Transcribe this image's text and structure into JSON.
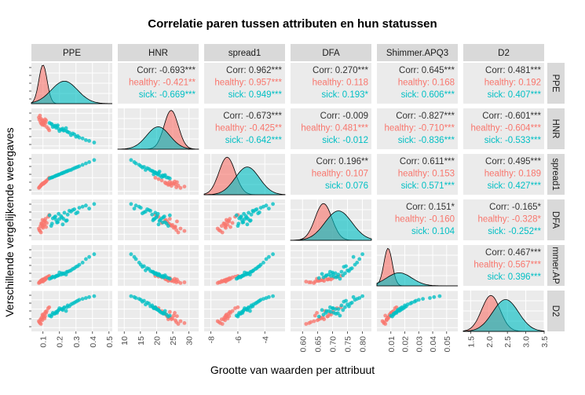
{
  "chart_data": {
    "type": "scatter",
    "title": "Correlatie paren tussen attributen en hun statussen",
    "xlabel": "Grootte van waarden per attribuut",
    "ylabel": "Verschillende vergelijkende weergaves",
    "variables": [
      "PPE",
      "HNR",
      "spread1",
      "DFA",
      "Shimmer.APQ3",
      "D2"
    ],
    "row_strip_labels": [
      "PPE",
      "HNR",
      "spread1",
      "DFA",
      "mmer.AP",
      "D2"
    ],
    "groups": [
      {
        "name": "healthy",
        "color": "#F8766D"
      },
      {
        "name": "sick",
        "color": "#00BFC4"
      }
    ],
    "x_ticks": [
      [
        "0.1",
        "0.2",
        "0.3",
        "0.4",
        "0.5"
      ],
      [
        "10",
        "15",
        "20",
        "25",
        "30"
      ],
      [
        "-8",
        "-6",
        "-4"
      ],
      [
        "0.60",
        "0.65",
        "0.70",
        "0.75",
        "0.80"
      ],
      [
        "0.01",
        "0.02",
        "0.03",
        "0.04",
        "0.05"
      ],
      [
        "1.5",
        "2.0",
        "2.5",
        "3.0",
        "3.5"
      ]
    ],
    "x_tick_values": [
      [
        0.1,
        0.2,
        0.3,
        0.4,
        0.5
      ],
      [
        10,
        15,
        20,
        25,
        30
      ],
      [
        -8,
        -6,
        -4
      ],
      [
        0.6,
        0.65,
        0.7,
        0.75,
        0.8
      ],
      [
        0.01,
        0.02,
        0.03,
        0.04,
        0.05
      ],
      [
        1.5,
        2.0,
        2.5,
        3.0,
        3.5
      ]
    ],
    "ranges": [
      [
        0.03,
        0.52
      ],
      [
        8,
        33
      ],
      [
        -8.5,
        -2.5
      ],
      [
        0.56,
        0.83
      ],
      [
        0.0,
        0.058
      ],
      [
        1.3,
        3.5
      ]
    ],
    "correlations": [
      {
        "row": 0,
        "col": 1,
        "corr": "Corr: -0.693***",
        "healthy": "healthy: -0.421**",
        "sick": "sick: -0.669***"
      },
      {
        "row": 0,
        "col": 2,
        "corr": "Corr: 0.962***",
        "healthy": "healthy: 0.957***",
        "sick": "sick: 0.949***"
      },
      {
        "row": 0,
        "col": 3,
        "corr": "Corr: 0.270***",
        "healthy": "healthy: 0.118",
        "sick": "sick: 0.193*"
      },
      {
        "row": 0,
        "col": 4,
        "corr": "Corr: 0.645***",
        "healthy": "healthy: 0.168",
        "sick": "sick: 0.606***"
      },
      {
        "row": 0,
        "col": 5,
        "corr": "Corr: 0.481***",
        "healthy": "healthy: 0.192",
        "sick": "sick: 0.407***"
      },
      {
        "row": 1,
        "col": 2,
        "corr": "Corr: -0.673***",
        "healthy": "healthy: -0.425**",
        "sick": "sick: -0.642***"
      },
      {
        "row": 1,
        "col": 3,
        "corr": "Corr: -0.009",
        "healthy": "healthy: 0.481***",
        "sick": "sick: -0.012"
      },
      {
        "row": 1,
        "col": 4,
        "corr": "Corr: -0.827***",
        "healthy": "healthy: -0.710***",
        "sick": "sick: -0.836***"
      },
      {
        "row": 1,
        "col": 5,
        "corr": "Corr: -0.601***",
        "healthy": "healthy: -0.604***",
        "sick": "sick: -0.533***"
      },
      {
        "row": 2,
        "col": 3,
        "corr": "Corr: 0.196**",
        "healthy": "healthy: 0.107",
        "sick": "sick: 0.076"
      },
      {
        "row": 2,
        "col": 4,
        "corr": "Corr: 0.611***",
        "healthy": "healthy: 0.153",
        "sick": "sick: 0.571***"
      },
      {
        "row": 2,
        "col": 5,
        "corr": "Corr: 0.495***",
        "healthy": "healthy: 0.189",
        "sick": "sick: 0.427***"
      },
      {
        "row": 3,
        "col": 4,
        "corr": "Corr: 0.151*",
        "healthy": "healthy: -0.160",
        "sick": "sick: 0.104"
      },
      {
        "row": 3,
        "col": 5,
        "corr": "Corr: -0.165*",
        "healthy": "healthy: -0.328*",
        "sick": "sick: -0.252**"
      },
      {
        "row": 4,
        "col": 5,
        "corr": "Corr: 0.467***",
        "healthy": "healthy: 0.567***",
        "sick": "sick: 0.396***"
      }
    ],
    "densities": [
      {
        "healthy": {
          "mean": 0.1,
          "sd": 0.025,
          "peak": 0.95
        },
        "sick": {
          "mean": 0.23,
          "sd": 0.08,
          "peak": 0.55
        }
      },
      {
        "healthy": {
          "mean": 24.5,
          "sd": 2.2,
          "peak": 0.95
        },
        "sick": {
          "mean": 20.5,
          "sd": 3.6,
          "peak": 0.55
        }
      },
      {
        "healthy": {
          "mean": -6.8,
          "sd": 0.6,
          "peak": 0.92
        },
        "sick": {
          "mean": -5.3,
          "sd": 0.9,
          "peak": 0.68
        }
      },
      {
        "healthy": {
          "mean": 0.67,
          "sd": 0.028,
          "peak": 0.9
        },
        "sick": {
          "mean": 0.72,
          "sd": 0.045,
          "peak": 0.72
        }
      },
      {
        "healthy": {
          "mean": 0.008,
          "sd": 0.003,
          "peak": 0.92
        },
        "sick": {
          "mean": 0.016,
          "sd": 0.009,
          "peak": 0.32
        }
      },
      {
        "healthy": {
          "mean": 2.05,
          "sd": 0.25,
          "peak": 0.88
        },
        "sick": {
          "mean": 2.45,
          "sd": 0.35,
          "peak": 0.78
        }
      }
    ],
    "scatter_points": [
      {
        "group": "healthy",
        "values": [
          0.085,
          24.6,
          -7.2,
          0.655,
          0.007,
          1.95
        ]
      },
      {
        "group": "healthy",
        "values": [
          0.092,
          23.9,
          -7.0,
          0.668,
          0.008,
          2.05
        ]
      },
      {
        "group": "healthy",
        "values": [
          0.1,
          25.3,
          -6.9,
          0.642,
          0.006,
          2.15
        ]
      },
      {
        "group": "healthy",
        "values": [
          0.108,
          22.6,
          -6.7,
          0.69,
          0.01,
          2.25
        ]
      },
      {
        "group": "healthy",
        "values": [
          0.078,
          26.1,
          -7.4,
          0.628,
          0.005,
          1.8
        ]
      },
      {
        "group": "healthy",
        "values": [
          0.115,
          24.1,
          -6.6,
          0.702,
          0.011,
          2.35
        ]
      },
      {
        "group": "healthy",
        "values": [
          0.123,
          21.6,
          -6.4,
          0.675,
          0.012,
          2.4
        ]
      },
      {
        "group": "healthy",
        "values": [
          0.096,
          25.8,
          -6.95,
          0.65,
          0.007,
          1.9
        ]
      },
      {
        "group": "healthy",
        "values": [
          0.104,
          23.3,
          -6.8,
          0.683,
          0.009,
          2.1
        ]
      },
      {
        "group": "healthy",
        "values": [
          0.088,
          26.7,
          -7.15,
          0.612,
          0.006,
          1.7
        ]
      },
      {
        "group": "healthy",
        "values": [
          0.132,
          20.6,
          -6.2,
          0.715,
          0.013,
          2.55
        ]
      },
      {
        "group": "healthy",
        "values": [
          0.075,
          27.4,
          -7.5,
          0.638,
          0.004,
          1.85
        ]
      },
      {
        "group": "healthy",
        "values": [
          0.11,
          24.9,
          -6.75,
          0.662,
          0.008,
          2.0
        ]
      },
      {
        "group": "healthy",
        "values": [
          0.097,
          22.9,
          -6.85,
          0.695,
          0.009,
          2.2
        ]
      },
      {
        "group": "healthy",
        "values": [
          0.119,
          25.6,
          -6.55,
          0.648,
          0.01,
          2.3
        ]
      },
      {
        "group": "healthy",
        "values": [
          0.09,
          23.6,
          -7.05,
          0.672,
          0.007,
          1.95
        ]
      },
      {
        "group": "healthy",
        "values": [
          0.138,
          19.6,
          -6.0,
          0.728,
          0.014,
          2.6
        ]
      },
      {
        "group": "healthy",
        "values": [
          0.082,
          28.6,
          -7.3,
          0.622,
          0.005,
          1.75
        ]
      },
      {
        "group": "healthy",
        "values": [
          0.103,
          24.3,
          -6.9,
          0.66,
          0.008,
          2.05
        ]
      },
      {
        "group": "healthy",
        "values": [
          0.113,
          26.3,
          -6.65,
          0.685,
          0.009,
          2.12
        ]
      },
      {
        "group": "sick",
        "values": [
          0.16,
          21.6,
          -5.9,
          0.705,
          0.013,
          2.3
        ]
      },
      {
        "group": "sick",
        "values": [
          0.23,
          19.6,
          -5.2,
          0.742,
          0.018,
          2.6
        ]
      },
      {
        "group": "sick",
        "values": [
          0.19,
          22.6,
          -5.6,
          0.68,
          0.015,
          2.4
        ]
      },
      {
        "group": "sick",
        "values": [
          0.28,
          17.6,
          -4.7,
          0.76,
          0.024,
          2.8
        ]
      },
      {
        "group": "sick",
        "values": [
          0.21,
          20.1,
          -5.4,
          0.72,
          0.016,
          2.5
        ]
      },
      {
        "group": "sick",
        "values": [
          0.32,
          15.1,
          -4.3,
          0.775,
          0.03,
          3.0
        ]
      },
      {
        "group": "sick",
        "values": [
          0.15,
          23.6,
          -6.0,
          0.655,
          0.011,
          2.1
        ]
      },
      {
        "group": "sick",
        "values": [
          0.25,
          18.6,
          -5.0,
          0.73,
          0.02,
          2.7
        ]
      },
      {
        "group": "sick",
        "values": [
          0.18,
          21.1,
          -5.7,
          0.695,
          0.014,
          2.35
        ]
      },
      {
        "group": "sick",
        "values": [
          0.36,
          13.6,
          -3.9,
          0.79,
          0.038,
          3.1
        ]
      },
      {
        "group": "sick",
        "values": [
          0.22,
          20.6,
          -5.3,
          0.665,
          0.017,
          2.45
        ]
      },
      {
        "group": "sick",
        "values": [
          0.27,
          16.6,
          -4.85,
          0.75,
          0.022,
          2.75
        ]
      },
      {
        "group": "sick",
        "values": [
          0.17,
          22.1,
          -5.8,
          0.712,
          0.012,
          2.25
        ]
      },
      {
        "group": "sick",
        "values": [
          0.3,
          15.6,
          -4.5,
          0.738,
          0.027,
          2.9
        ]
      },
      {
        "group": "sick",
        "values": [
          0.2,
          19.1,
          -5.5,
          0.7,
          0.019,
          2.55
        ]
      },
      {
        "group": "sick",
        "values": [
          0.41,
          12.1,
          -3.4,
          0.8,
          0.045,
          3.2
        ]
      },
      {
        "group": "sick",
        "values": [
          0.24,
          20.9,
          -5.1,
          0.688,
          0.016,
          2.4
        ]
      },
      {
        "group": "sick",
        "values": [
          0.14,
          24.1,
          -6.1,
          0.725,
          0.01,
          2.15
        ]
      },
      {
        "group": "sick",
        "values": [
          0.29,
          17.1,
          -4.6,
          0.765,
          0.025,
          2.85
        ]
      },
      {
        "group": "sick",
        "values": [
          0.185,
          21.9,
          -5.65,
          0.678,
          0.014,
          2.3
        ]
      },
      {
        "group": "sick",
        "values": [
          0.26,
          18.1,
          -4.9,
          0.755,
          0.021,
          2.65
        ]
      },
      {
        "group": "sick",
        "values": [
          0.34,
          14.6,
          -4.1,
          0.782,
          0.033,
          3.05
        ]
      },
      {
        "group": "sick",
        "values": [
          0.215,
          19.9,
          -5.35,
          0.71,
          0.018,
          2.5
        ]
      },
      {
        "group": "sick",
        "values": [
          0.155,
          23.1,
          -5.95,
          0.67,
          0.012,
          2.2
        ]
      },
      {
        "group": "sick",
        "values": [
          0.31,
          16.1,
          -4.4,
          0.745,
          0.028,
          2.95
        ]
      },
      {
        "group": "sick",
        "values": [
          0.195,
          20.4,
          -5.55,
          0.735,
          0.015,
          2.45
        ]
      },
      {
        "group": "sick",
        "values": [
          0.245,
          18.9,
          -5.05,
          0.692,
          0.02,
          2.6
        ]
      },
      {
        "group": "sick",
        "values": [
          0.175,
          22.4,
          -5.75,
          0.718,
          0.013,
          2.28
        ]
      },
      {
        "group": "sick",
        "values": [
          0.38,
          13.1,
          -3.7,
          0.77,
          0.041,
          3.15
        ]
      },
      {
        "group": "sick",
        "values": [
          0.225,
          19.4,
          -5.25,
          0.702,
          0.017,
          2.55
        ]
      }
    ]
  }
}
